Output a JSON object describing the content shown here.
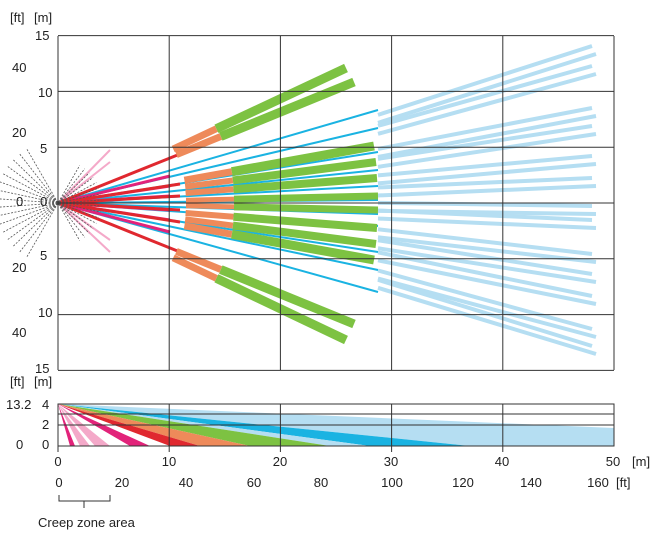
{
  "top_view": {
    "unit_ft": "[ft]",
    "unit_m": "[m]",
    "ft_ticks": [
      "40",
      "20",
      "0",
      "20",
      "40"
    ],
    "m_ticks": [
      "15",
      "10",
      "5",
      "0",
      "5",
      "10",
      "15"
    ],
    "x_range_m": [
      0,
      50
    ],
    "y_range_m": [
      -15,
      15
    ]
  },
  "side_view": {
    "unit_ft": "[ft]",
    "unit_m": "[m]",
    "ft_ticks": [
      "13.2",
      "0"
    ],
    "m_ticks": [
      "4",
      "2",
      "0"
    ],
    "y_range_m": [
      0,
      4
    ]
  },
  "x_axis": {
    "m_ticks": [
      "0",
      "10",
      "20",
      "30",
      "40",
      "50"
    ],
    "m_unit": "[m]",
    "ft_ticks": [
      "0",
      "20",
      "40",
      "60",
      "80",
      "100",
      "120",
      "140",
      "160"
    ],
    "ft_unit": "[ft]"
  },
  "creep_zone_label": "Creep zone area",
  "colors": {
    "grid": "#333333",
    "creep_hatch": "#555555",
    "pink": "#f4a9c9",
    "magenta": "#e2237a",
    "red": "#e0282f",
    "orange": "#ee8a5a",
    "green": "#7dc242",
    "cyan": "#1ab3e2",
    "light_blue": "#b5def2"
  }
}
